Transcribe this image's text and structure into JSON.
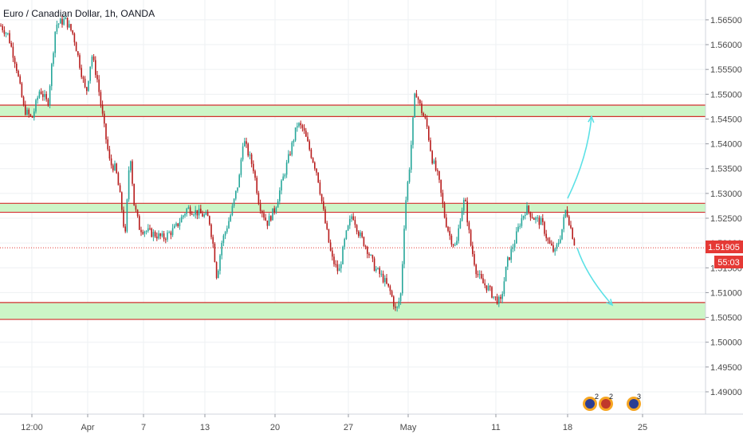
{
  "header": {
    "title": "Euro / Canadian Dollar, 1h, OANDA"
  },
  "price_badges": {
    "last_price": "1.51905",
    "countdown": "55:03"
  },
  "colors": {
    "up": "#26a69a",
    "down": "#b71c1c",
    "zone_fill": "#ccf5c7",
    "zone_border": "#d32f2f",
    "arrow": "#5ce1e6",
    "badge": "#e53935",
    "grid": "#eef0f3",
    "axis_text": "#4a4a4a"
  },
  "chart_data": {
    "type": "candlestick",
    "symbol": "Euro / Canadian Dollar",
    "interval": "1h",
    "source": "OANDA",
    "ylim": [
      1.4855,
      1.569
    ],
    "y_ticks": [
      "1.56500",
      "1.56000",
      "1.55500",
      "1.55000",
      "1.54500",
      "1.54000",
      "1.53500",
      "1.53000",
      "1.52500",
      "1.52000",
      "1.51500",
      "1.51000",
      "1.50500",
      "1.50000",
      "1.49500",
      "1.49000"
    ],
    "x_ticks": [
      "12:00",
      "Apr",
      "7",
      "13",
      "20",
      "27",
      "May",
      "11",
      "18",
      "25"
    ],
    "last_price": 1.51905,
    "zones": [
      {
        "low": 1.5455,
        "high": 1.5478
      },
      {
        "low": 1.5262,
        "high": 1.528
      },
      {
        "low": 1.5046,
        "high": 1.508
      }
    ],
    "price_path": [
      [
        0,
        1.564
      ],
      [
        10,
        1.562
      ],
      [
        20,
        1.556
      ],
      [
        30,
        1.547
      ],
      [
        40,
        1.545
      ],
      [
        50,
        1.551
      ],
      [
        60,
        1.548
      ],
      [
        70,
        1.564
      ],
      [
        82,
        1.565
      ],
      [
        92,
        1.562
      ],
      [
        100,
        1.556
      ],
      [
        108,
        1.55
      ],
      [
        115,
        1.558
      ],
      [
        122,
        1.553
      ],
      [
        130,
        1.544
      ],
      [
        138,
        1.536
      ],
      [
        145,
        1.535
      ],
      [
        152,
        1.528
      ],
      [
        157,
        1.521
      ],
      [
        163,
        1.539
      ],
      [
        168,
        1.528
      ],
      [
        175,
        1.523
      ],
      [
        190,
        1.522
      ],
      [
        205,
        1.521
      ],
      [
        220,
        1.523
      ],
      [
        235,
        1.527
      ],
      [
        250,
        1.526
      ],
      [
        262,
        1.525
      ],
      [
        268,
        1.519
      ],
      [
        272,
        1.513
      ],
      [
        278,
        1.52
      ],
      [
        290,
        1.526
      ],
      [
        300,
        1.533
      ],
      [
        305,
        1.541
      ],
      [
        318,
        1.535
      ],
      [
        325,
        1.528
      ],
      [
        335,
        1.524
      ],
      [
        345,
        1.527
      ],
      [
        355,
        1.533
      ],
      [
        365,
        1.539
      ],
      [
        373,
        1.544
      ],
      [
        380,
        1.543
      ],
      [
        388,
        1.539
      ],
      [
        398,
        1.534
      ],
      [
        408,
        1.524
      ],
      [
        416,
        1.517
      ],
      [
        425,
        1.514
      ],
      [
        433,
        1.521
      ],
      [
        442,
        1.526
      ],
      [
        450,
        1.522
      ],
      [
        460,
        1.519
      ],
      [
        470,
        1.515
      ],
      [
        480,
        1.513
      ],
      [
        490,
        1.51
      ],
      [
        497,
        1.506
      ],
      [
        503,
        1.51
      ],
      [
        508,
        1.527
      ],
      [
        514,
        1.536
      ],
      [
        521,
        1.551
      ],
      [
        528,
        1.547
      ],
      [
        535,
        1.544
      ],
      [
        542,
        1.537
      ],
      [
        550,
        1.533
      ],
      [
        558,
        1.525
      ],
      [
        565,
        1.521
      ],
      [
        572,
        1.519
      ],
      [
        578,
        1.526
      ],
      [
        583,
        1.529
      ],
      [
        590,
        1.52
      ],
      [
        598,
        1.514
      ],
      [
        605,
        1.512
      ],
      [
        612,
        1.511
      ],
      [
        620,
        1.509
      ],
      [
        628,
        1.508
      ],
      [
        636,
        1.516
      ],
      [
        645,
        1.52
      ],
      [
        652,
        1.524
      ],
      [
        660,
        1.527
      ],
      [
        670,
        1.525
      ],
      [
        680,
        1.524
      ],
      [
        688,
        1.52
      ],
      [
        696,
        1.518
      ],
      [
        704,
        1.522
      ],
      [
        710,
        1.527
      ],
      [
        716,
        1.523
      ],
      [
        722,
        1.519
      ]
    ],
    "arrows": [
      {
        "from": [
          712,
          1.529
        ],
        "to": [
          742,
          1.5455
        ]
      },
      {
        "from": [
          724,
          1.519
        ],
        "to": [
          768,
          1.5075
        ]
      }
    ],
    "grid": true
  }
}
